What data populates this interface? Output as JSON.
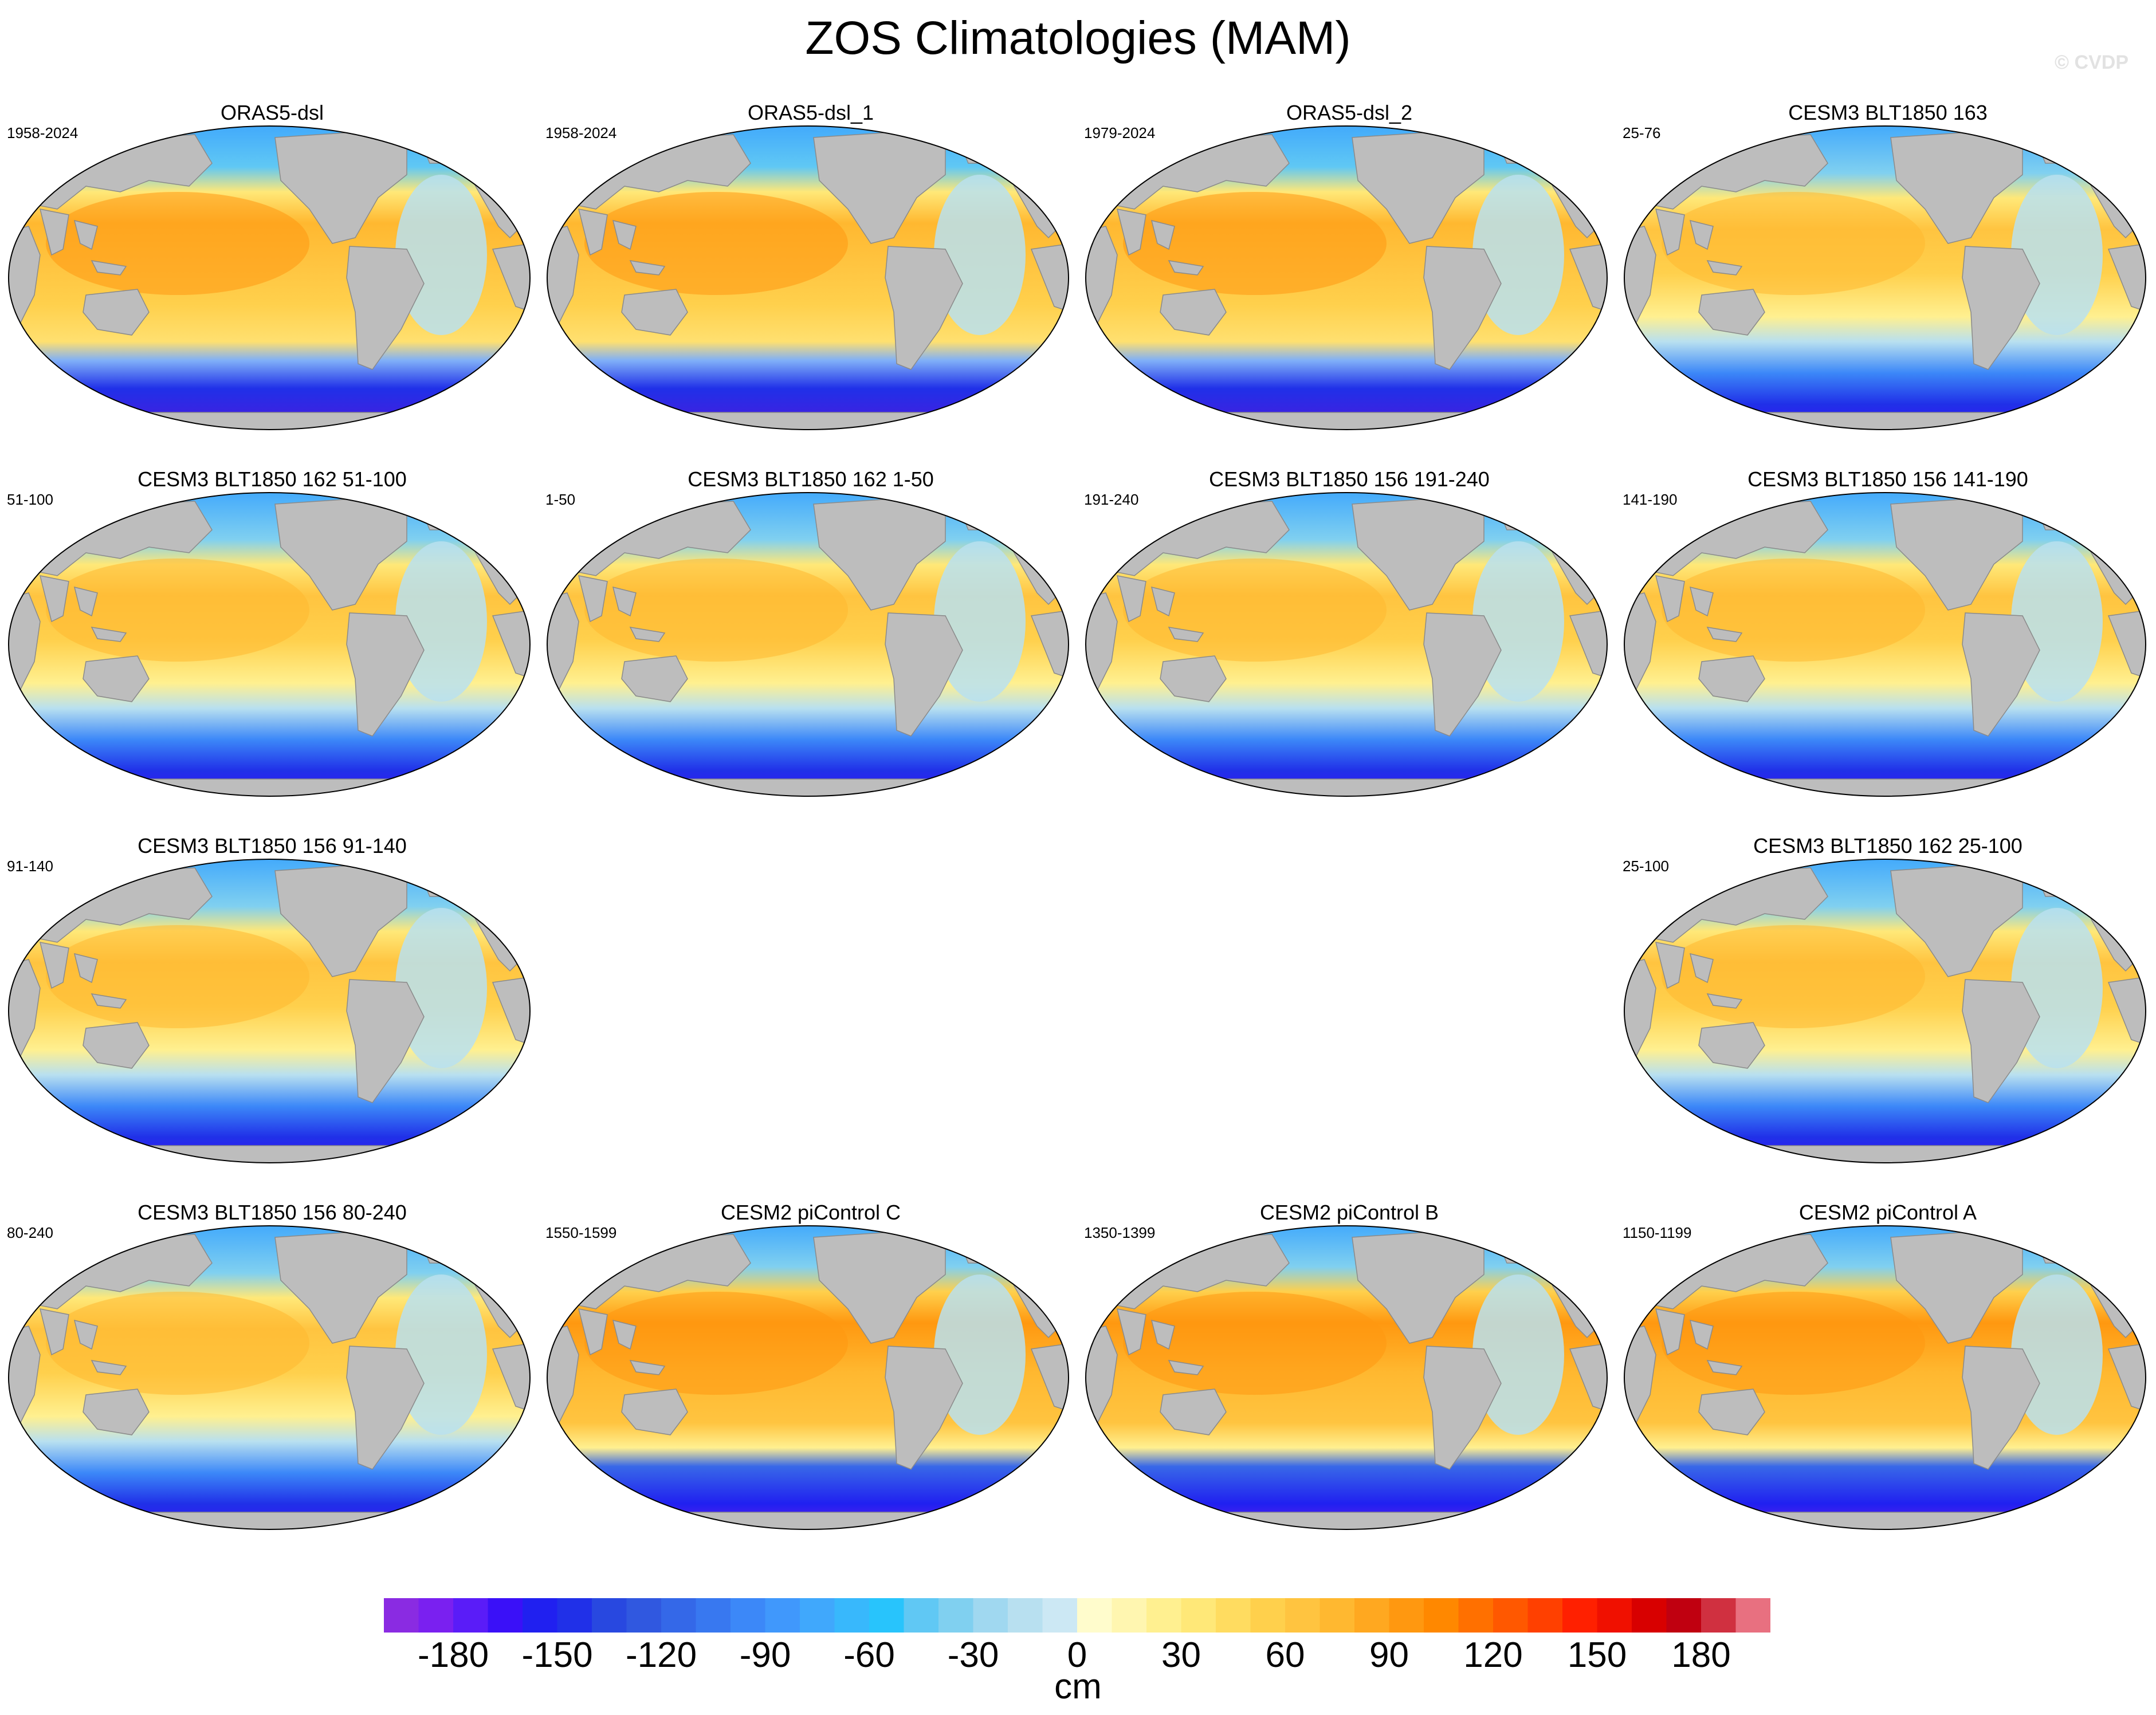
{
  "figure": {
    "title": "ZOS Climatologies (MAM)",
    "credit": "© CVDP",
    "units": "cm"
  },
  "panels": [
    {
      "title": "ORAS5-dsl",
      "years": "1958-2024",
      "style": "obs"
    },
    {
      "title": "ORAS5-dsl_1",
      "years": "1958-2024",
      "style": "obs"
    },
    {
      "title": "ORAS5-dsl_2",
      "years": "1979-2024",
      "style": "obs"
    },
    {
      "title": "CESM3 BLT1850 163",
      "years": "25-76",
      "style": "cesm3"
    },
    {
      "title": "CESM3 BLT1850 162 51-100",
      "years": "51-100",
      "style": "cesm3"
    },
    {
      "title": "CESM3 BLT1850 162 1-50",
      "years": "1-50",
      "style": "cesm3"
    },
    {
      "title": "CESM3 BLT1850 156 191-240",
      "years": "191-240",
      "style": "cesm3"
    },
    {
      "title": "CESM3 BLT1850 156 141-190",
      "years": "141-190",
      "style": "cesm3"
    },
    {
      "title": "CESM3 BLT1850 156 91-140",
      "years": "91-140",
      "style": "cesm3"
    },
    {
      "title": "CESM3 BLT1850 162 25-100",
      "years": "25-100",
      "style": "cesm3"
    },
    {
      "title": "CESM3 BLT1850 156 80-240",
      "years": "80-240",
      "style": "cesm3"
    },
    {
      "title": "CESM2 piControl C",
      "years": "1550-1599",
      "style": "cesm2"
    },
    {
      "title": "CESM2 piControl B",
      "years": "1350-1399",
      "style": "cesm2"
    },
    {
      "title": "CESM2 piControl A",
      "years": "1150-1199",
      "style": "cesm2"
    }
  ],
  "colorbar": {
    "min": -200,
    "max": 200,
    "step": 10,
    "labels": [
      "-180",
      "-150",
      "-120",
      "-90",
      "-60",
      "-30",
      "0",
      "30",
      "60",
      "90",
      "120",
      "150",
      "180"
    ],
    "colors": [
      "#8a2be2",
      "#7a20f0",
      "#5a1cf8",
      "#3a10f8",
      "#2020f0",
      "#2030e8",
      "#2848e0",
      "#3058e0",
      "#3468e8",
      "#3878f0",
      "#3c88f8",
      "#4098fc",
      "#40a8fc",
      "#38b8fc",
      "#28c4fc",
      "#60c8f4",
      "#80d0f0",
      "#a0d8f0",
      "#b8e0f0",
      "#cce8f4",
      "#fffccc",
      "#fff6b0",
      "#fff090",
      "#ffe878",
      "#ffdc60",
      "#ffd04c",
      "#ffc440",
      "#ffb830",
      "#ffa820",
      "#ff9810",
      "#ff8800",
      "#ff7000",
      "#ff5800",
      "#ff4000",
      "#ff2000",
      "#f01000",
      "#d80000",
      "#c00010",
      "#d03040",
      "#e87080"
    ]
  }
}
